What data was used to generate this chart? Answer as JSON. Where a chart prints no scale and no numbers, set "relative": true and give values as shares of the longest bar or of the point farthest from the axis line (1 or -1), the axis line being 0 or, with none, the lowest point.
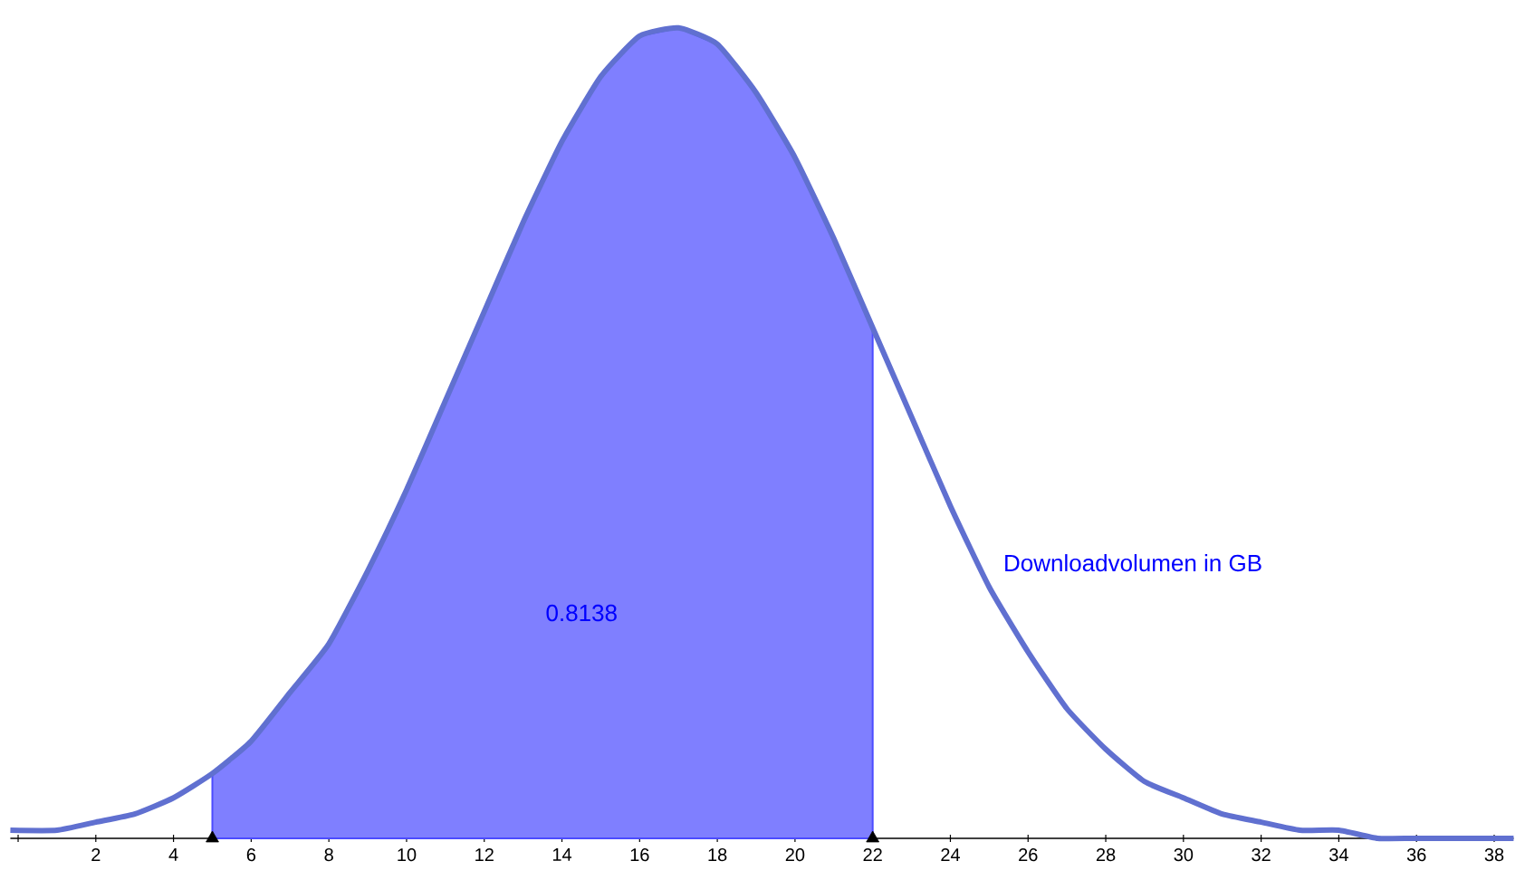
{
  "chart_data": {
    "type": "line",
    "relative": true,
    "xlim": [
      -0.2,
      38.5
    ],
    "xticks": [
      {
        "value": 0,
        "label": null
      },
      2,
      4,
      6,
      8,
      10,
      12,
      14,
      16,
      18,
      20,
      22,
      24,
      26,
      28,
      30,
      32,
      34,
      36,
      38
    ],
    "tick_labels": "x",
    "series": [
      {
        "name": "Downloadvolumen in GB",
        "color": "#6070d0",
        "x": [
          -0.2,
          1,
          2,
          3,
          4,
          5,
          6,
          7,
          8,
          9,
          10,
          11,
          12,
          13,
          14,
          15,
          16,
          17,
          18,
          19,
          20,
          21,
          22,
          23,
          24,
          25,
          26,
          27,
          28,
          29,
          30,
          31,
          32,
          33,
          34,
          35,
          36,
          38,
          38.5
        ],
        "values": [
          0.01,
          0.01,
          0.02,
          0.03,
          0.05,
          0.08,
          0.12,
          0.18,
          0.24,
          0.33,
          0.43,
          0.54,
          0.65,
          0.76,
          0.86,
          0.94,
          0.99,
          1,
          0.98,
          0.92,
          0.84,
          0.74,
          0.63,
          0.52,
          0.41,
          0.31,
          0.23,
          0.16,
          0.11,
          0.07,
          0.05,
          0.03,
          0.02,
          0.01,
          0.01,
          0,
          0,
          0,
          0
        ]
      },
      {
        "type": "area",
        "color": "#7f7fff",
        "x": [
          5,
          6,
          7,
          8,
          9,
          10,
          11,
          12,
          13,
          14,
          15,
          16,
          17,
          18,
          19,
          20,
          21,
          22
        ],
        "values": [
          0.08,
          0.12,
          0.18,
          0.24,
          0.33,
          0.43,
          0.54,
          0.65,
          0.76,
          0.86,
          0.94,
          0.99,
          1,
          0.98,
          0.92,
          0.84,
          0.74,
          0.63
        ]
      },
      {
        "type": "scatter",
        "color": "#000000",
        "marker": "triangle",
        "x": [
          5,
          22
        ],
        "values": [
          0,
          0
        ]
      }
    ],
    "annotations": [
      "0.8138"
    ]
  }
}
